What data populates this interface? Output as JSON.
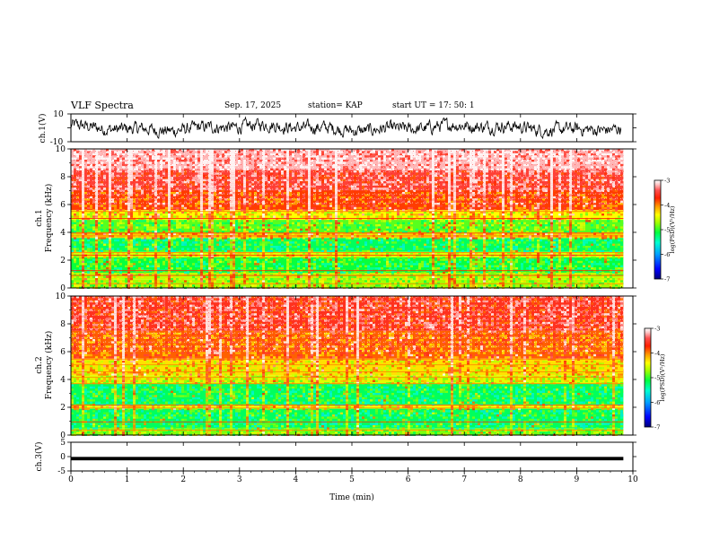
{
  "header": {
    "title": "VLF Spectra",
    "date": "Sep. 17, 2025",
    "station": "station= KAP",
    "start": "start UT =  17: 50: 1"
  },
  "colors": {
    "accent": "#000000",
    "colormap": [
      "#00007a",
      "#0000ff",
      "#00a0ff",
      "#00ffd0",
      "#00ff40",
      "#a0ff00",
      "#ffff00",
      "#ffa000",
      "#ff2000",
      "#ff5050",
      "#ffc8c8",
      "#ffffff"
    ]
  },
  "chart_data": [
    {
      "type": "line",
      "name": "ch1-waveform",
      "ylabel": "ch.1(V)",
      "ylim": [
        -10,
        10
      ],
      "ytick_labels": [
        "10",
        "-10"
      ],
      "xlim": [
        0,
        10
      ],
      "data_extent_x": [
        0,
        9.83
      ],
      "note_visible": "noisy waveform fluctuating between about -6 and 6 V"
    },
    {
      "type": "heatmap",
      "name": "ch1-spectrogram",
      "ylabel": "ch.1\nFrequency (kHz)",
      "ylim": [
        0,
        10
      ],
      "ytick_labels": [
        "0",
        "2",
        "4",
        "6",
        "8",
        "10"
      ],
      "xlim": [
        0,
        10
      ],
      "data_extent_x": [
        0,
        9.83
      ],
      "colorbar": {
        "label": "log(PSD)(V²/Hz)",
        "range": [
          -7,
          -3
        ],
        "tick_labels": [
          "-3",
          "-4",
          "-5",
          "-6",
          "-7"
        ]
      },
      "bands": [
        {
          "freq": [
            0.0,
            0.6
          ],
          "level": -4.7
        },
        {
          "freq": [
            0.6,
            1.1
          ],
          "level": -4.6
        },
        {
          "freq": [
            1.1,
            2.2
          ],
          "level": -5.1
        },
        {
          "freq": [
            2.2,
            2.6
          ],
          "level": -4.5
        },
        {
          "freq": [
            2.6,
            3.6
          ],
          "level": -5.2
        },
        {
          "freq": [
            3.6,
            4.0
          ],
          "level": -4.2
        },
        {
          "freq": [
            4.0,
            4.9
          ],
          "level": -4.9
        },
        {
          "freq": [
            4.9,
            5.6
          ],
          "level": -4.4
        },
        {
          "freq": [
            5.6,
            7.0
          ],
          "level": -3.8
        },
        {
          "freq": [
            7.0,
            8.5
          ],
          "level": -3.5
        },
        {
          "freq": [
            8.5,
            10.0
          ],
          "level": -3.2
        }
      ]
    },
    {
      "type": "heatmap",
      "name": "ch2-spectrogram",
      "ylabel": "ch.2\nFrequency (kHz)",
      "ylim": [
        0,
        10
      ],
      "ytick_labels": [
        "0",
        "2",
        "4",
        "6",
        "8",
        "10"
      ],
      "xlim": [
        0,
        10
      ],
      "data_extent_x": [
        0,
        9.83
      ],
      "colorbar": {
        "label": "log(PSD)(V²/Hz)",
        "range": [
          -7,
          -3
        ],
        "tick_labels": [
          "-3",
          "-4",
          "-5",
          "-6",
          "-7"
        ]
      },
      "bands": [
        {
          "freq": [
            0.0,
            0.5
          ],
          "level": -4.8
        },
        {
          "freq": [
            0.5,
            1.9
          ],
          "level": -5.2
        },
        {
          "freq": [
            1.9,
            2.2
          ],
          "level": -4.4
        },
        {
          "freq": [
            2.2,
            3.7
          ],
          "level": -5.2
        },
        {
          "freq": [
            3.7,
            4.3
          ],
          "level": -4.5
        },
        {
          "freq": [
            4.3,
            5.5
          ],
          "level": -4.3
        },
        {
          "freq": [
            5.5,
            7.5
          ],
          "level": -3.9
        },
        {
          "freq": [
            7.5,
            10.0
          ],
          "level": -3.6
        }
      ]
    },
    {
      "type": "line",
      "name": "ch3-waveform",
      "ylabel": "ch.3(V)",
      "ylim": [
        -5,
        5
      ],
      "ytick_labels": [
        "5",
        "0",
        "-5"
      ],
      "xlim": [
        0,
        10
      ],
      "data_extent_x": [
        0,
        9.83
      ],
      "band_y": [
        -1.3,
        -0.1
      ],
      "xlabel": "Time (min)",
      "xtick_labels": [
        "0",
        "1",
        "2",
        "3",
        "4",
        "5",
        "6",
        "7",
        "8",
        "9",
        "10"
      ]
    }
  ]
}
